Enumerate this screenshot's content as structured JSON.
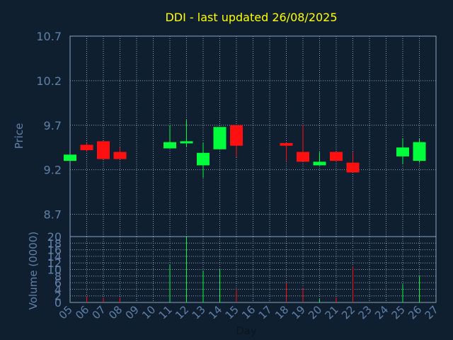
{
  "chart_data": {
    "type": "candlestick",
    "title": "DDI - last updated 26/08/2025",
    "xlabel": "Day",
    "ylabel_price": "Price",
    "ylabel_volume": "Volume (0000)",
    "x_ticks": [
      "05",
      "06",
      "07",
      "08",
      "09",
      "10",
      "11",
      "12",
      "13",
      "14",
      "15",
      "16",
      "17",
      "18",
      "19",
      "20",
      "21",
      "22",
      "23",
      "24",
      "25",
      "26",
      "27"
    ],
    "price_ticks": [
      "8.7",
      "9.2",
      "9.7",
      "10.2",
      "10.7"
    ],
    "price_ylim": [
      8.45,
      10.7
    ],
    "volume_ticks": [
      "0",
      "2",
      "4",
      "6",
      "8",
      "10",
      "12",
      "14",
      "16",
      "18",
      "20"
    ],
    "volume_ylim": [
      0,
      20
    ],
    "grid": true,
    "colors": {
      "up": "#00ff3a",
      "down": "#ff1010",
      "background": "#0f1f30",
      "axis": "#8aa0c0",
      "grid": "#8aa0c0",
      "title": "#ffff00",
      "label": "#6080a8"
    },
    "series": [
      {
        "day": "05",
        "open": 9.3,
        "high": 9.37,
        "low": 9.3,
        "close": 9.37,
        "volume": 0.2
      },
      {
        "day": "06",
        "open": 9.48,
        "high": 9.5,
        "low": 9.4,
        "close": 9.42,
        "volume": 2.0
      },
      {
        "day": "07",
        "open": 9.52,
        "high": 9.52,
        "low": 9.32,
        "close": 9.32,
        "volume": 1.5
      },
      {
        "day": "08",
        "open": 9.4,
        "high": 9.45,
        "low": 9.32,
        "close": 9.32,
        "volume": 1.5
      },
      {
        "day": "11",
        "open": 9.44,
        "high": 9.7,
        "low": 9.44,
        "close": 9.51,
        "volume": 11.5
      },
      {
        "day": "12",
        "open": 9.5,
        "high": 9.76,
        "low": 9.46,
        "close": 9.52,
        "volume": 20.0
      },
      {
        "day": "13",
        "open": 9.25,
        "high": 9.5,
        "low": 9.11,
        "close": 9.39,
        "volume": 9.5
      },
      {
        "day": "14",
        "open": 9.43,
        "high": 9.68,
        "low": 9.43,
        "close": 9.68,
        "volume": 10.0
      },
      {
        "day": "15",
        "open": 9.7,
        "high": 9.7,
        "low": 9.34,
        "close": 9.47,
        "volume": 4.0
      },
      {
        "day": "18",
        "open": 9.5,
        "high": 9.5,
        "low": 9.3,
        "close": 9.47,
        "volume": 6.0
      },
      {
        "day": "19",
        "open": 9.4,
        "high": 9.7,
        "low": 9.29,
        "close": 9.29,
        "volume": 4.5
      },
      {
        "day": "20",
        "open": 9.25,
        "high": 9.4,
        "low": 9.25,
        "close": 9.29,
        "volume": 1.0
      },
      {
        "day": "21",
        "open": 9.4,
        "high": 9.4,
        "low": 9.3,
        "close": 9.3,
        "volume": 1.5
      },
      {
        "day": "22",
        "open": 9.28,
        "high": 9.4,
        "low": 9.17,
        "close": 9.17,
        "volume": 11.0
      },
      {
        "day": "25",
        "open": 9.35,
        "high": 9.55,
        "low": 9.27,
        "close": 9.45,
        "volume": 5.5
      },
      {
        "day": "26",
        "open": 9.3,
        "high": 9.55,
        "low": 9.28,
        "close": 9.51,
        "volume": 8.0
      }
    ]
  }
}
